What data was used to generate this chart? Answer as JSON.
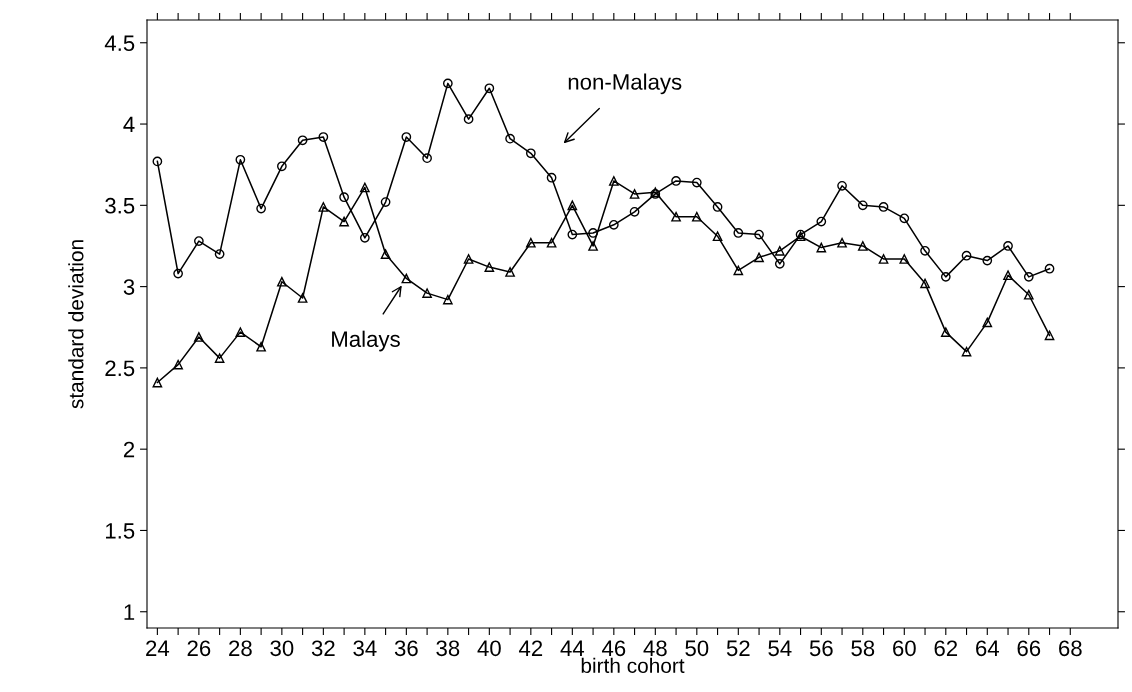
{
  "chart_data": {
    "type": "line",
    "xlabel": "birth cohort",
    "ylabel": "standard deviation",
    "x": [
      24,
      25,
      26,
      27,
      28,
      29,
      30,
      31,
      32,
      33,
      34,
      35,
      36,
      37,
      38,
      39,
      40,
      41,
      42,
      43,
      44,
      45,
      46,
      47,
      48,
      49,
      50,
      51,
      52,
      53,
      54,
      55,
      56,
      57,
      58,
      59,
      60,
      61,
      62,
      63,
      64,
      65,
      66,
      67
    ],
    "series": [
      {
        "color": "#000000",
        "marker": "circle",
        "values": [
          3.77,
          3.08,
          3.28,
          3.2,
          3.78,
          3.48,
          3.74,
          3.9,
          3.92,
          3.55,
          3.3,
          3.52,
          3.92,
          3.79,
          4.25,
          4.03,
          4.22,
          3.91,
          3.82,
          3.67,
          3.32,
          3.33,
          3.38,
          3.46,
          3.57,
          3.65,
          3.64,
          3.49,
          3.33,
          3.32,
          3.14,
          3.32,
          3.4,
          3.62,
          3.5,
          3.49,
          3.42,
          3.22,
          3.06,
          3.19,
          3.16,
          3.25,
          3.06,
          3.11
        ]
      },
      {
        "color": "#000000",
        "marker": "triangle",
        "values": [
          2.41,
          2.52,
          2.69,
          2.56,
          2.72,
          2.63,
          3.03,
          2.93,
          3.49,
          3.4,
          3.61,
          3.2,
          3.05,
          2.96,
          2.92,
          3.17,
          3.12,
          3.09,
          3.27,
          3.27,
          3.5,
          3.25,
          3.65,
          3.57,
          3.58,
          3.43,
          3.43,
          3.31,
          3.1,
          3.18,
          3.22,
          3.31,
          3.24,
          3.27,
          3.25,
          3.17,
          3.17,
          3.02,
          2.72,
          2.6,
          2.78,
          3.07,
          2.95,
          2.7
        ]
      }
    ],
    "annotations": [
      "non-Malays",
      {
        "text": "Malays",
        "x": 36,
        "y": 3.05
      }
    ],
    "xlim": [
      23.5,
      70.3
    ],
    "ylim": [
      0.9,
      4.64
    ],
    "xticks": [
      24,
      {
        "value": 25,
        "label": null
      },
      26,
      {
        "value": 27,
        "label": null
      },
      28,
      {
        "value": 29,
        "label": null
      },
      30,
      {
        "value": 31,
        "label": null
      },
      32,
      {
        "value": 33,
        "label": null
      },
      34,
      {
        "value": 35,
        "label": null
      },
      36,
      {
        "value": 37,
        "label": null
      },
      38,
      {
        "value": 39,
        "label": null
      },
      40,
      {
        "value": 41,
        "label": null
      },
      42,
      {
        "value": 43,
        "label": null
      },
      44,
      {
        "value": 45,
        "label": null
      },
      46,
      {
        "value": 47,
        "label": null
      },
      48,
      {
        "value": 49,
        "label": null
      },
      50,
      {
        "value": 51,
        "label": null
      },
      52,
      {
        "value": 53,
        "label": null
      },
      54,
      {
        "value": 55,
        "label": null
      },
      56,
      {
        "value": 57,
        "label": null
      },
      58,
      {
        "value": 59,
        "label": null
      },
      60,
      {
        "value": 61,
        "label": null
      },
      62,
      {
        "value": 63,
        "label": null
      },
      64,
      {
        "value": 65,
        "label": null
      },
      66,
      {
        "value": 67,
        "label": null
      },
      68
    ],
    "yticks": [
      1,
      1.5,
      2,
      2.5,
      3,
      3.5,
      4,
      4.5
    ],
    "grid": false,
    "line_style": "solid"
  }
}
